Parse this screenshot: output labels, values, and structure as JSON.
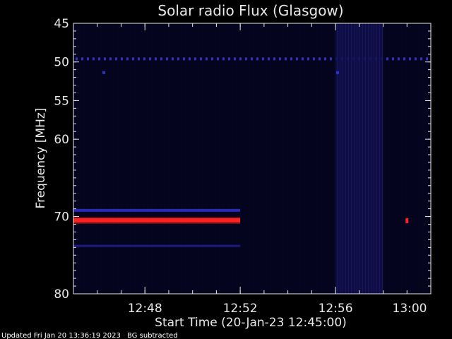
{
  "chart_data": {
    "type": "heatmap",
    "title": "Solar radio Flux (Glasgow)",
    "xlabel": "Start Time (20-Jan-23 12:45:00)",
    "ylabel": "Frequency [MHz]",
    "x_unit": "minutes",
    "xlim": [
      "12:45",
      "13:00"
    ],
    "ylim": [
      45,
      80
    ],
    "x_ticks": [
      "12:48",
      "12:52",
      "12:56",
      "13:00"
    ],
    "y_ticks": [
      "45",
      "50",
      "55",
      "60",
      "70",
      "80"
    ],
    "background_color": "#000000",
    "plot_background_color": "#04041c",
    "features": [
      {
        "label": "strong emission band",
        "freq_mhz": 70.5,
        "from": "12:45",
        "to": "12:52",
        "color": "#ff2020",
        "intensity": "high"
      },
      {
        "label": "moderate band",
        "freq_mhz": 69.2,
        "from": "12:45",
        "to": "12:52",
        "color": "#2a2ab4",
        "intensity": "medium"
      },
      {
        "label": "weak band",
        "freq_mhz": 73.8,
        "from": "12:45",
        "to": "12:52",
        "color": "#1c1c80",
        "intensity": "low"
      },
      {
        "label": "dotted band",
        "freq_mhz": 49.6,
        "from": "12:45",
        "to": "13:00",
        "color": "#3030c8",
        "intensity": "medium"
      },
      {
        "label": "elevated activity block",
        "freq_range": [
          45,
          80
        ],
        "from": "12:56",
        "to": "12:58",
        "color": "#10104a",
        "intensity": "low"
      },
      {
        "label": "red blip",
        "freq_mhz": 70.5,
        "from": "12:59",
        "to": "12:59",
        "color": "#ff2020",
        "intensity": "high"
      }
    ]
  },
  "footer": {
    "updated": "Updated Fri Jan 20 13:36:19 2023",
    "note": "BG subtracted"
  }
}
